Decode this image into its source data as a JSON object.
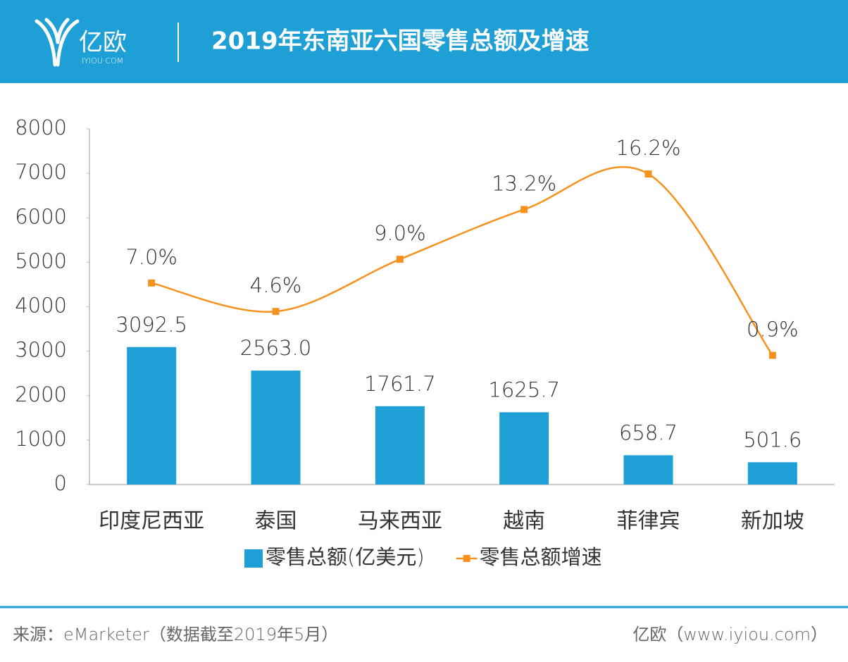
{
  "header": {
    "logo": "亿欧",
    "logo_sub": "IYIOU·COM"
  },
  "chart_data": {
    "type": "bar-line",
    "title": "2019年东南亚六国零售总额及增速",
    "categories": [
      "印度尼西亚",
      "泰国",
      "马来西亚",
      "越南",
      "菲律宾",
      "新加坡"
    ],
    "series": [
      {
        "name": "零售总额(亿美元)",
        "type": "bar",
        "color": "#1e9fd6",
        "values": [
          3092.5,
          2563.0,
          1761.7,
          1625.7,
          658.7,
          501.6
        ],
        "value_labels": [
          "3092.5",
          "2563.0",
          "1761.7",
          "1625.7",
          "658.7",
          "501.6"
        ]
      },
      {
        "name": "零售总额增速",
        "type": "line",
        "axis": "y2",
        "color": "#f5921e",
        "values": [
          7.0,
          4.6,
          9.0,
          13.2,
          16.2,
          0.9
        ],
        "value_labels": [
          "7.0%",
          "4.6%",
          "9.0%",
          "13.2%",
          "16.2%",
          "0.9%"
        ]
      }
    ],
    "ylim": [
      0,
      8000
    ],
    "yticks": [
      0,
      1000,
      2000,
      3000,
      4000,
      5000,
      6000,
      7000,
      8000
    ],
    "y2lim": [
      -10,
      20
    ],
    "grid": false,
    "legend": "bottom"
  },
  "footer": {
    "source": "来源：eMarketer（数据截至2019年5月）",
    "credit": "亿欧（www.iyiou.com）"
  }
}
